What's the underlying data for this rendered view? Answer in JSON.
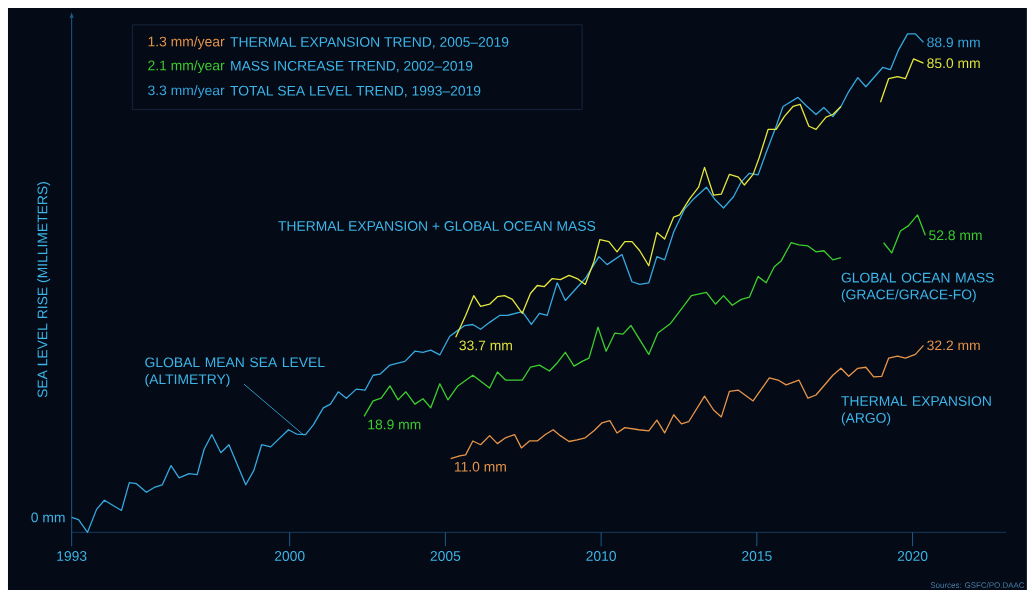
{
  "chart_data": {
    "type": "line",
    "ylabel": "SEA LEVEL RISE (MILLIMETERS)",
    "xlim": [
      1993,
      2023
    ],
    "xticks": [
      1993,
      2000,
      2005,
      2010,
      2015,
      2020
    ],
    "series": [
      {
        "name": "GLOBAL MEAN SEA LEVEL (ALTIMETRY)",
        "color": "#35a9e0",
        "x": [
          1993.0,
          1993.22,
          1993.51,
          1993.8,
          1994.05,
          1994.6,
          1994.85,
          1995.08,
          1995.4,
          1995.65,
          1995.91,
          1996.19,
          1996.45,
          1996.77,
          1997.03,
          1997.25,
          1997.5,
          1997.79,
          1998.05,
          1998.59,
          1998.85,
          1999.1,
          1999.39,
          1999.96,
          2000.22,
          2000.51,
          2000.76,
          2001.08,
          2001.31,
          2001.56,
          2001.82,
          2002.14,
          2002.42,
          2002.68,
          2002.9,
          2003.22,
          2003.7,
          2004.02,
          2004.28,
          2004.53,
          2004.82,
          2005.14,
          2005.4,
          2005.62,
          2005.88,
          2006.13,
          2006.42,
          2006.74,
          2006.99,
          2007.47,
          2007.76,
          2008.02,
          2008.27,
          2008.59,
          2008.85,
          2009.49,
          2009.93,
          2010.19,
          2010.67,
          2010.99,
          2011.24,
          2011.53,
          2011.79,
          2012.04,
          2012.33,
          2012.68,
          2012.97,
          2013.38,
          2013.64,
          2013.93,
          2014.25,
          2014.5,
          2014.76,
          2015.04,
          2015.3,
          2015.62,
          2015.84,
          2016.32,
          2016.58,
          2016.9,
          2017.15,
          2017.44,
          2017.7,
          2017.95,
          2018.24,
          2018.5,
          2019.04,
          2019.29,
          2019.55,
          2019.84,
          2020.09,
          2020.35
        ],
        "values": [
          0,
          -0.4,
          -2.8,
          1.5,
          3.2,
          1.3,
          6.5,
          6.3,
          4.7,
          5.6,
          6.1,
          9.7,
          7.4,
          8.2,
          8.0,
          12.7,
          15.5,
          12.1,
          13.6,
          6.1,
          8.8,
          13.6,
          13.2,
          16.4,
          15.6,
          15.5,
          17.3,
          20.5,
          21.2,
          23.5,
          22.3,
          24.0,
          23.8,
          26.6,
          26.8,
          28.5,
          29.2,
          31.1,
          30.9,
          31.3,
          30.4,
          33.9,
          35.0,
          35.9,
          36.1,
          35.2,
          36.5,
          37.8,
          37.8,
          38.5,
          36.1,
          38.2,
          37.8,
          43.9,
          40.6,
          44.7,
          48.8,
          47.3,
          49.2,
          44.1,
          43.6,
          43.9,
          48.8,
          48.2,
          53.4,
          57.7,
          59.6,
          61.8,
          59.6,
          57.9,
          60.0,
          62.8,
          64.4,
          64.1,
          68.3,
          73.2,
          76.9,
          78.6,
          77.1,
          75.4,
          76.7,
          75.0,
          76.9,
          79.7,
          82.3,
          80.6,
          84.2,
          83.8,
          87.5,
          90.5,
          90.5,
          88.9
        ],
        "value_labels": [
          null,
          null,
          null,
          null,
          null,
          null,
          null,
          null,
          null,
          null,
          null,
          null,
          null,
          null,
          null,
          null,
          null,
          null,
          null,
          null,
          null,
          null,
          null,
          null,
          null,
          null,
          null,
          null,
          null,
          null,
          null,
          null,
          null,
          null,
          null,
          null,
          null,
          null,
          null,
          null,
          null,
          null,
          null,
          null,
          null,
          null,
          null,
          null,
          null,
          null,
          null,
          null,
          null,
          null,
          null,
          null,
          null,
          null,
          null,
          null,
          null,
          null,
          null,
          null,
          null,
          null,
          null,
          null,
          null,
          null,
          null,
          null,
          null,
          null,
          null,
          null,
          null,
          null,
          null,
          null,
          null,
          null,
          null,
          null,
          null,
          null,
          null,
          null,
          null,
          null,
          null,
          "88.9 mm"
        ]
      },
      {
        "name": "THERMAL EXPANSION + GLOBAL OCEAN MASS",
        "color": "#e6e83c",
        "x": [
          2005.33,
          2005.65,
          2005.91,
          2006.13,
          2006.42,
          2006.67,
          2006.9,
          2007.15,
          2007.47,
          2007.73,
          2007.95,
          2008.18,
          2008.43,
          2008.69,
          2008.97,
          2009.23,
          2009.49,
          2009.77,
          2009.96,
          2010.25,
          2010.51,
          2010.76,
          2010.99,
          2011.24,
          2011.53,
          2011.79,
          2012.04,
          2012.33,
          2012.52,
          2012.84,
          2013.13,
          2013.32,
          2013.61,
          2013.86,
          2014.12,
          2014.41,
          2014.6,
          2014.88,
          2015.08,
          2015.36,
          2015.62,
          2015.88,
          2016.16,
          2016.39,
          2016.67,
          2016.9,
          2017.22,
          2017.44,
          2017.7,
          2018.3,
          2018.97,
          2019.23,
          2019.52,
          2019.77,
          2020.03,
          2020.35
        ],
        "values": [
          33.7,
          37.8,
          41.5,
          39.5,
          39.9,
          41.3,
          41.5,
          40.8,
          38.2,
          41.9,
          43.4,
          43.2,
          44.7,
          44.5,
          45.3,
          44.7,
          43.6,
          47.9,
          52.0,
          51.6,
          49.7,
          51.6,
          51.6,
          49.9,
          47.1,
          53.3,
          52.1,
          56.2,
          56.6,
          59.6,
          61.8,
          65.5,
          60.3,
          60.5,
          64.2,
          63.7,
          62.2,
          64.2,
          67.4,
          72.6,
          72.6,
          75.0,
          76.9,
          77.3,
          73.2,
          72.6,
          74.9,
          75.4,
          76.9,
          null,
          77.7,
          82.1,
          82.5,
          82.1,
          85.8,
          85.0
        ],
        "value_labels": [
          "33.7 mm",
          null,
          null,
          null,
          null,
          null,
          null,
          null,
          null,
          null,
          null,
          null,
          null,
          null,
          null,
          null,
          null,
          null,
          null,
          null,
          null,
          null,
          null,
          null,
          null,
          null,
          null,
          null,
          null,
          null,
          null,
          null,
          null,
          null,
          null,
          null,
          null,
          null,
          null,
          null,
          null,
          null,
          null,
          null,
          null,
          null,
          null,
          null,
          null,
          null,
          null,
          null,
          null,
          null,
          null,
          "85.0 mm"
        ]
      },
      {
        "name": "GLOBAL OCEAN MASS (GRACE/GRACE-FO)",
        "color": "#3ccf2e",
        "x": [
          2002.39,
          2002.68,
          2002.94,
          2003.22,
          2003.48,
          2003.73,
          2004.02,
          2004.28,
          2004.53,
          2004.82,
          2005.08,
          2005.4,
          2005.88,
          2006.42,
          2006.67,
          2006.93,
          2007.47,
          2007.73,
          2008.02,
          2008.34,
          2008.59,
          2008.85,
          2009.13,
          2009.39,
          2009.61,
          2009.9,
          2010.16,
          2010.44,
          2010.7,
          2010.96,
          2011.53,
          2011.82,
          2012.23,
          2012.9,
          2013.38,
          2013.67,
          2013.93,
          2014.21,
          2014.5,
          2014.76,
          2015.04,
          2015.3,
          2015.56,
          2015.78,
          2016.1,
          2016.35,
          2016.64,
          2016.9,
          2017.15,
          2017.44,
          2017.7,
          2018.4,
          2019.07,
          2019.33,
          2019.61,
          2019.87,
          2020.16,
          2020.41
        ],
        "values": [
          18.9,
          21.8,
          22.3,
          24.6,
          22.0,
          23.5,
          21.2,
          22.2,
          20.5,
          25.0,
          22.0,
          24.6,
          26.6,
          24.2,
          27.2,
          25.7,
          25.7,
          28.1,
          28.5,
          27.4,
          28.9,
          30.9,
          28.3,
          29.2,
          29.8,
          35.6,
          31.1,
          34.5,
          34.3,
          35.9,
          30.5,
          34.5,
          36.3,
          41.5,
          42.1,
          39.9,
          41.5,
          39.7,
          40.8,
          41.2,
          45.1,
          43.9,
          46.9,
          48.0,
          51.4,
          51.0,
          50.8,
          49.7,
          49.9,
          48.2,
          48.6,
          null,
          51.4,
          49.5,
          53.6,
          54.6,
          56.6,
          52.8
        ],
        "value_labels": [
          "18.9 mm",
          null,
          null,
          null,
          null,
          null,
          null,
          null,
          null,
          null,
          null,
          null,
          null,
          null,
          null,
          null,
          null,
          null,
          null,
          null,
          null,
          null,
          null,
          null,
          null,
          null,
          null,
          null,
          null,
          null,
          null,
          null,
          null,
          null,
          null,
          null,
          null,
          null,
          null,
          null,
          null,
          null,
          null,
          null,
          null,
          null,
          null,
          null,
          null,
          null,
          null,
          null,
          null,
          null,
          null,
          null,
          null,
          "52.8 mm"
        ]
      },
      {
        "name": "THERMAL EXPANSION (ARGO)",
        "color": "#e8954a",
        "x": [
          2005.17,
          2005.46,
          2005.65,
          2005.88,
          2006.13,
          2006.42,
          2006.67,
          2006.93,
          2007.22,
          2007.44,
          2007.7,
          2007.95,
          2008.21,
          2008.46,
          2008.69,
          2008.97,
          2009.23,
          2009.49,
          2009.77,
          2010.03,
          2010.28,
          2010.51,
          2010.76,
          2011.21,
          2011.53,
          2011.79,
          2012.04,
          2012.33,
          2012.58,
          2012.81,
          2013.32,
          2013.61,
          2013.86,
          2014.12,
          2014.41,
          2014.88,
          2015.4,
          2015.68,
          2015.94,
          2016.35,
          2016.64,
          2016.9,
          2017.44,
          2017.7,
          2017.95,
          2018.24,
          2018.5,
          2018.75,
          2019.01,
          2019.23,
          2019.52,
          2019.77,
          2020.09,
          2020.35
        ],
        "values": [
          11.0,
          11.5,
          11.7,
          14.3,
          13.6,
          15.3,
          13.8,
          14.9,
          15.5,
          13.0,
          14.3,
          14.3,
          15.5,
          16.4,
          15.3,
          14.2,
          14.5,
          14.9,
          16.2,
          17.7,
          18.1,
          15.8,
          16.8,
          16.4,
          16.2,
          18.2,
          15.8,
          19.2,
          17.5,
          17.9,
          22.7,
          20.1,
          18.8,
          23.6,
          23.8,
          21.8,
          26.1,
          25.7,
          24.8,
          25.7,
          22.3,
          22.9,
          26.6,
          27.9,
          26.4,
          27.9,
          28.1,
          26.3,
          26.4,
          29.8,
          30.2,
          29.8,
          30.5,
          32.2
        ],
        "value_labels": [
          "11.0 mm",
          null,
          null,
          null,
          null,
          null,
          null,
          null,
          null,
          null,
          null,
          null,
          null,
          null,
          null,
          null,
          null,
          null,
          null,
          null,
          null,
          null,
          null,
          null,
          null,
          null,
          null,
          null,
          null,
          null,
          null,
          null,
          null,
          null,
          null,
          null,
          null,
          null,
          null,
          null,
          null,
          null,
          null,
          null,
          null,
          null,
          null,
          null,
          null,
          null,
          null,
          null,
          null,
          "32.2 mm"
        ]
      }
    ],
    "annotations": [
      "1.3 mm/year",
      "THERMAL EXPANSION TREND, 2005–2019",
      "2.1 mm/year",
      "MASS INCREASE TREND, 2002–2019",
      "3.3 mm/year",
      "TOTAL SEA LEVEL TREND, 1993–2019",
      "Sources: GSFC/PO.DAAC",
      {
        "text": "0 mm",
        "x": 1993,
        "y": 0
      }
    ]
  }
}
